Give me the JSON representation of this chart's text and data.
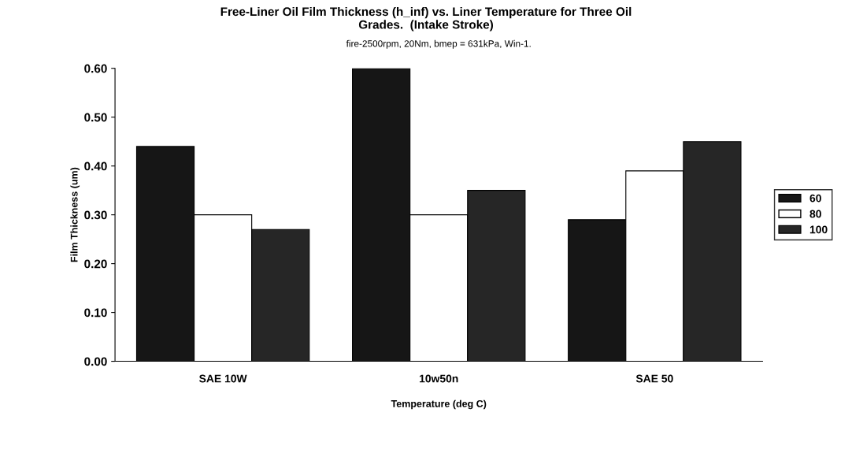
{
  "chart_data": {
    "type": "bar",
    "title": "Free-Liner Oil Film Thickness (h_inf) vs. Liner Temperature for Three Oil\nGrades.  (Intake Stroke)",
    "subtitle": "fire-2500rpm, 20Nm, bmep = 631kPa, Win-1.",
    "xlabel": "Temperature (deg C)",
    "ylabel": "Film Thickness (um)",
    "categories": [
      "SAE 10W",
      "10w50n",
      "SAE 50"
    ],
    "series": [
      {
        "name": "60",
        "color": "#161616",
        "values": [
          0.44,
          0.6,
          0.29
        ]
      },
      {
        "name": "80",
        "color": "#ffffff",
        "values": [
          0.3,
          0.3,
          0.39
        ]
      },
      {
        "name": "100",
        "color": "#262626",
        "values": [
          0.27,
          0.35,
          0.45
        ]
      }
    ],
    "ylim": [
      0,
      0.6
    ],
    "yticks": [
      {
        "value": 0,
        "label": "0.00"
      },
      {
        "value": 0.1,
        "label": "0.10"
      },
      {
        "value": 0.2,
        "label": "0.20"
      },
      {
        "value": 0.3,
        "label": "0.30"
      },
      {
        "value": 0.4,
        "label": "0.40"
      },
      {
        "value": 0.5,
        "label": "0.50"
      },
      {
        "value": 0.6,
        "label": "0.60"
      }
    ],
    "grid": false,
    "legend": "right"
  }
}
